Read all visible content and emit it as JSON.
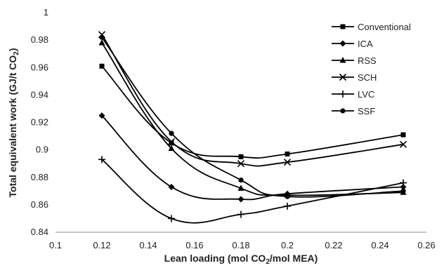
{
  "chart_data": {
    "type": "line",
    "title": "",
    "xlabel": "Lean loading (mol CO₂/mol MEA)",
    "ylabel": "Total equivalent work (GJ/t CO₂)",
    "xlim": [
      0.1,
      0.26
    ],
    "ylim": [
      0.84,
      1.0
    ],
    "x_ticks": [
      "0.1",
      "0.12",
      "0.14",
      "0.16",
      "0.18",
      "0.2",
      "0.22",
      "0.24",
      "0.26"
    ],
    "y_ticks": [
      "0.84",
      "0.86",
      "0.88",
      "0.9",
      "0.92",
      "0.94",
      "0.96",
      "0.98",
      "1"
    ],
    "grid": false,
    "legend_position": "top-right",
    "line_color": "#000000",
    "x": [
      0.12,
      0.15,
      0.18,
      0.2,
      0.25
    ],
    "series": [
      {
        "name": "Conventional",
        "marker": "square",
        "values": [
          0.961,
          0.905,
          0.895,
          0.897,
          0.911
        ]
      },
      {
        "name": "ICA",
        "marker": "diamond",
        "values": [
          0.925,
          0.873,
          0.864,
          0.868,
          0.873
        ]
      },
      {
        "name": "RSS",
        "marker": "triangle",
        "values": [
          0.978,
          0.901,
          0.872,
          0.867,
          0.869
        ]
      },
      {
        "name": "SCH",
        "marker": "x",
        "values": [
          0.984,
          0.906,
          0.89,
          0.891,
          0.904
        ]
      },
      {
        "name": "LVC",
        "marker": "plus",
        "values": [
          0.893,
          0.85,
          0.853,
          0.859,
          0.876
        ]
      },
      {
        "name": "SSF",
        "marker": "circle",
        "values": [
          0.982,
          0.912,
          0.878,
          0.866,
          0.87
        ]
      }
    ]
  }
}
